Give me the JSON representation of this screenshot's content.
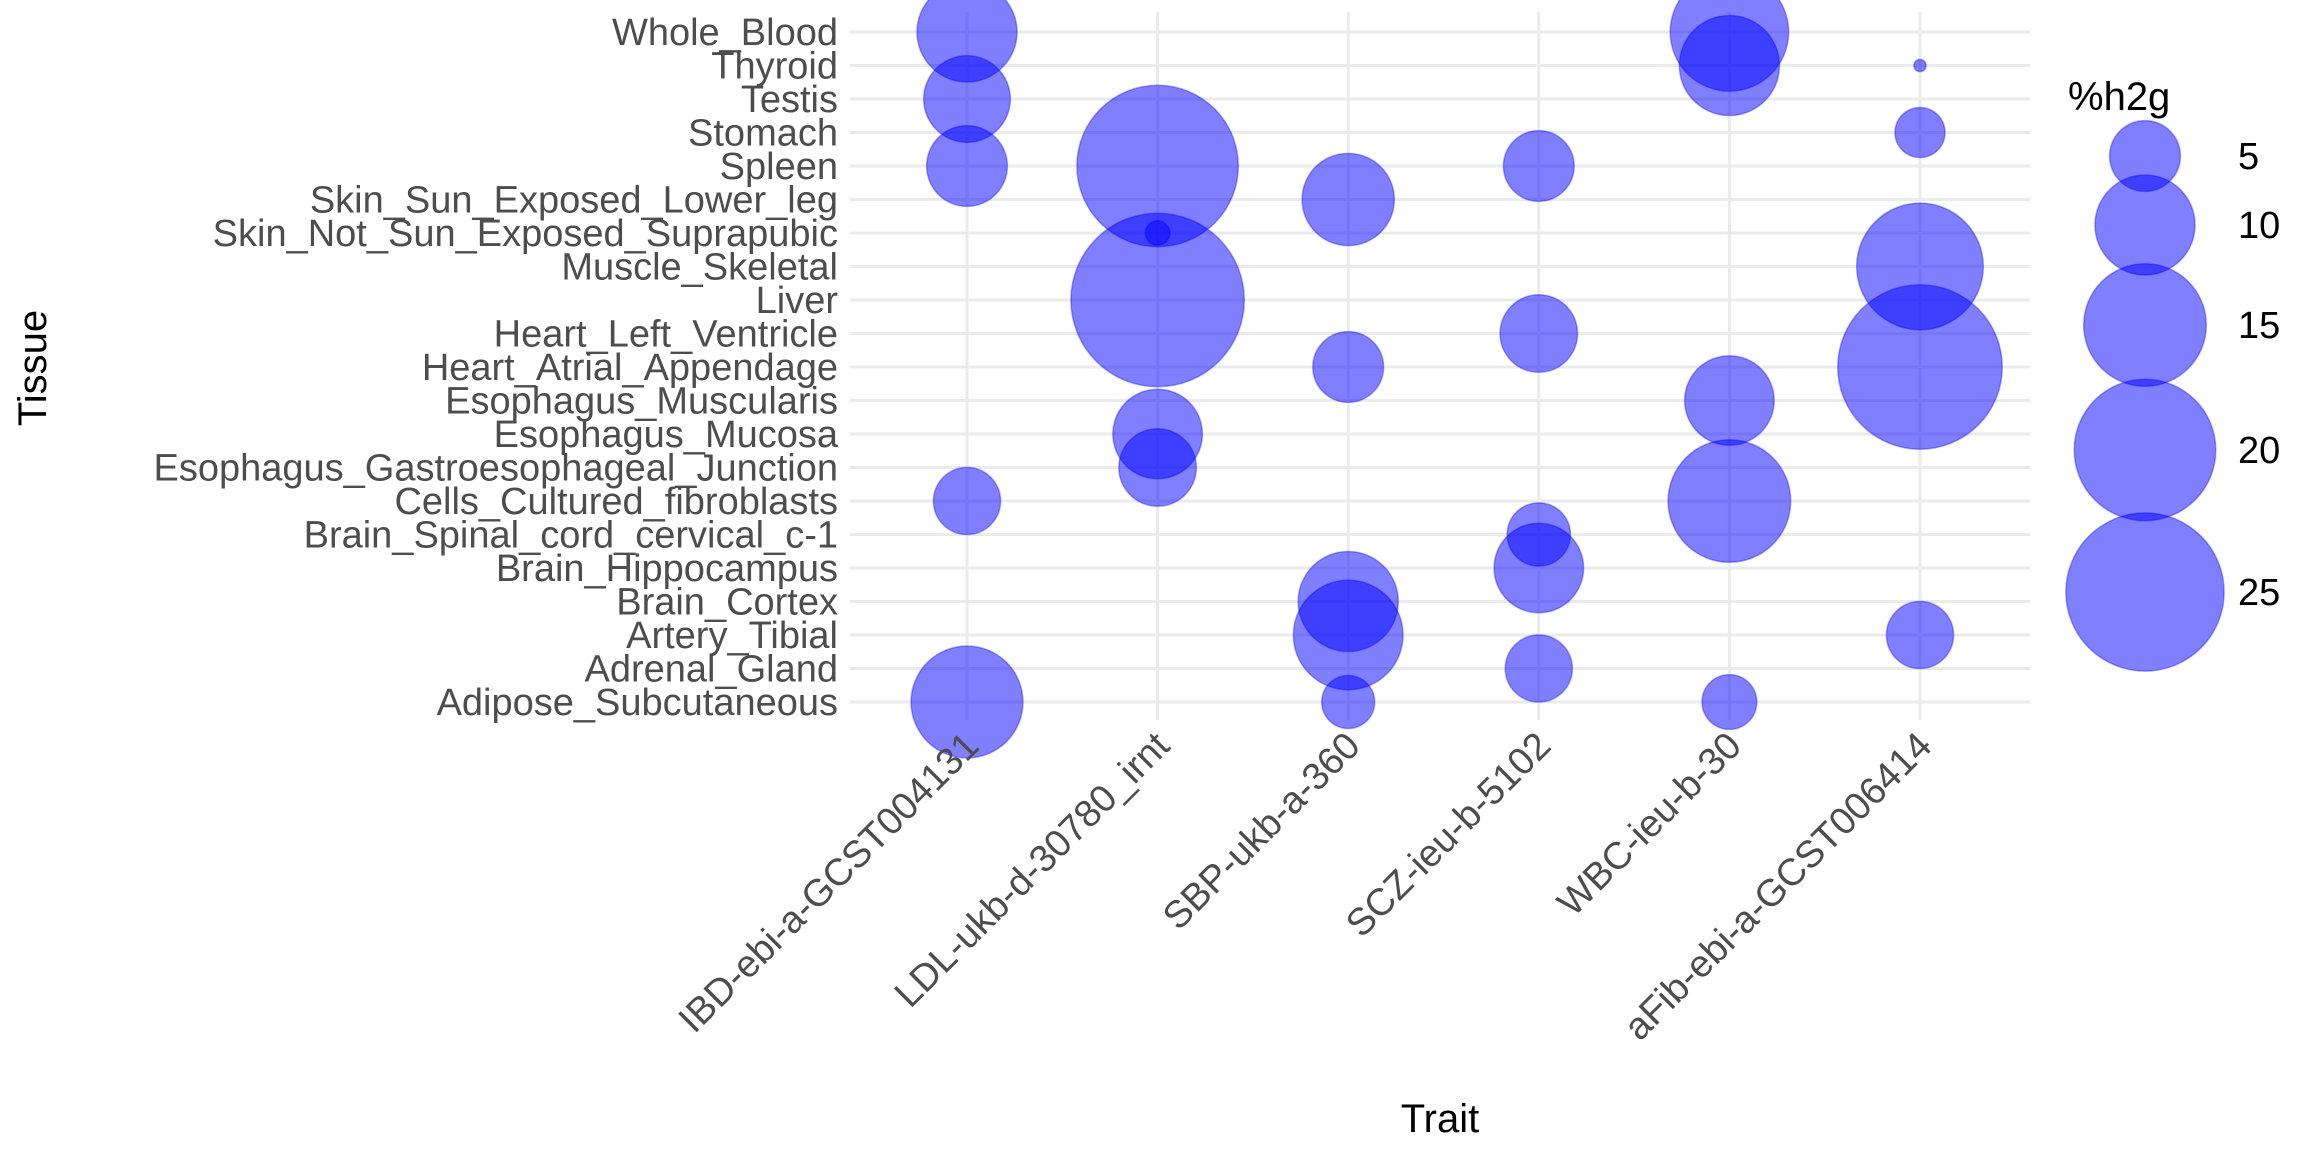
{
  "chart_data": {
    "type": "scatter",
    "xlabel": "Trait",
    "ylabel": "Tissue",
    "grid": true,
    "legend_placement": "right",
    "colors": {
      "point_fill": "#0000ff",
      "point_opacity": 0.5,
      "grid": "#ebebeb",
      "tick_text": "#4d4d4d"
    },
    "categories_x": [
      "IBD-ebi-a-GCST004131",
      "LDL-ukb-d-30780_irnt",
      "SBP-ukb-a-360",
      "SCZ-ieu-b-5102",
      "WBC-ieu-b-30",
      "aFib-ebi-a-GCST006414"
    ],
    "categories_y": [
      "Adipose_Subcutaneous",
      "Adrenal_Gland",
      "Artery_Tibial",
      "Brain_Cortex",
      "Brain_Hippocampus",
      "Brain_Spinal_cord_cervical_c-1",
      "Cells_Cultured_fibroblasts",
      "Esophagus_Gastroesophageal_Junction",
      "Esophagus_Mucosa",
      "Esophagus_Muscularis",
      "Heart_Atrial_Appendage",
      "Heart_Left_Ventricle",
      "Liver",
      "Muscle_Skeletal",
      "Skin_Not_Sun_Exposed_Suprapubic",
      "Skin_Sun_Exposed_Lower_leg",
      "Spleen",
      "Stomach",
      "Testis",
      "Thyroid",
      "Whole_Blood"
    ],
    "size_legend": {
      "title": "%h2g",
      "values": [
        5,
        10,
        15,
        20,
        25
      ]
    },
    "points": [
      {
        "x": "IBD-ebi-a-GCST004131",
        "y": "Whole_Blood",
        "size": 10
      },
      {
        "x": "IBD-ebi-a-GCST004131",
        "y": "Testis",
        "size": 7.5
      },
      {
        "x": "IBD-ebi-a-GCST004131",
        "y": "Spleen",
        "size": 6.5
      },
      {
        "x": "IBD-ebi-a-GCST004131",
        "y": "Cells_Cultured_fibroblasts",
        "size": 4.5
      },
      {
        "x": "IBD-ebi-a-GCST004131",
        "y": "Adipose_Subcutaneous",
        "size": 12.5
      },
      {
        "x": "LDL-ukb-d-30780_irnt",
        "y": "Spleen",
        "size": 26
      },
      {
        "x": "LDL-ukb-d-30780_irnt",
        "y": "Skin_Not_Sun_Exposed_Suprapubic",
        "size": 0.6
      },
      {
        "x": "LDL-ukb-d-30780_irnt",
        "y": "Liver",
        "size": 30
      },
      {
        "x": "LDL-ukb-d-30780_irnt",
        "y": "Esophagus_Mucosa",
        "size": 8
      },
      {
        "x": "LDL-ukb-d-30780_irnt",
        "y": "Esophagus_Gastroesophageal_Junction",
        "size": 6
      },
      {
        "x": "SBP-ukb-a-360",
        "y": "Skin_Sun_Exposed_Lower_leg",
        "size": 8.5
      },
      {
        "x": "SBP-ukb-a-360",
        "y": "Heart_Atrial_Appendage",
        "size": 5
      },
      {
        "x": "SBP-ukb-a-360",
        "y": "Brain_Cortex",
        "size": 10
      },
      {
        "x": "SBP-ukb-a-360",
        "y": "Artery_Tibial",
        "size": 12
      },
      {
        "x": "SBP-ukb-a-360",
        "y": "Adipose_Subcutaneous",
        "size": 2.8
      },
      {
        "x": "SCZ-ieu-b-5102",
        "y": "Spleen",
        "size": 5
      },
      {
        "x": "SCZ-ieu-b-5102",
        "y": "Heart_Left_Ventricle",
        "size": 6
      },
      {
        "x": "SCZ-ieu-b-5102",
        "y": "Brain_Spinal_cord_cervical_c-1",
        "size": 4
      },
      {
        "x": "SCZ-ieu-b-5102",
        "y": "Brain_Hippocampus",
        "size": 8
      },
      {
        "x": "SCZ-ieu-b-5102",
        "y": "Adrenal_Gland",
        "size": 4.5
      },
      {
        "x": "WBC-ieu-b-30",
        "y": "Whole_Blood",
        "size": 14
      },
      {
        "x": "WBC-ieu-b-30",
        "y": "Thyroid",
        "size": 10
      },
      {
        "x": "WBC-ieu-b-30",
        "y": "Esophagus_Muscularis",
        "size": 8
      },
      {
        "x": "WBC-ieu-b-30",
        "y": "Cells_Cultured_fibroblasts",
        "size": 15
      },
      {
        "x": "WBC-ieu-b-30",
        "y": "Adipose_Subcutaneous",
        "size": 3
      },
      {
        "x": "aFib-ebi-a-GCST006414",
        "y": "Thyroid",
        "size": 0.15
      },
      {
        "x": "aFib-ebi-a-GCST006414",
        "y": "Stomach",
        "size": 2.5
      },
      {
        "x": "aFib-ebi-a-GCST006414",
        "y": "Muscle_Skeletal",
        "size": 16
      },
      {
        "x": "aFib-ebi-a-GCST006414",
        "y": "Heart_Atrial_Appendage",
        "size": 27
      },
      {
        "x": "aFib-ebi-a-GCST006414",
        "y": "Artery_Tibial",
        "size": 4.5
      }
    ]
  }
}
